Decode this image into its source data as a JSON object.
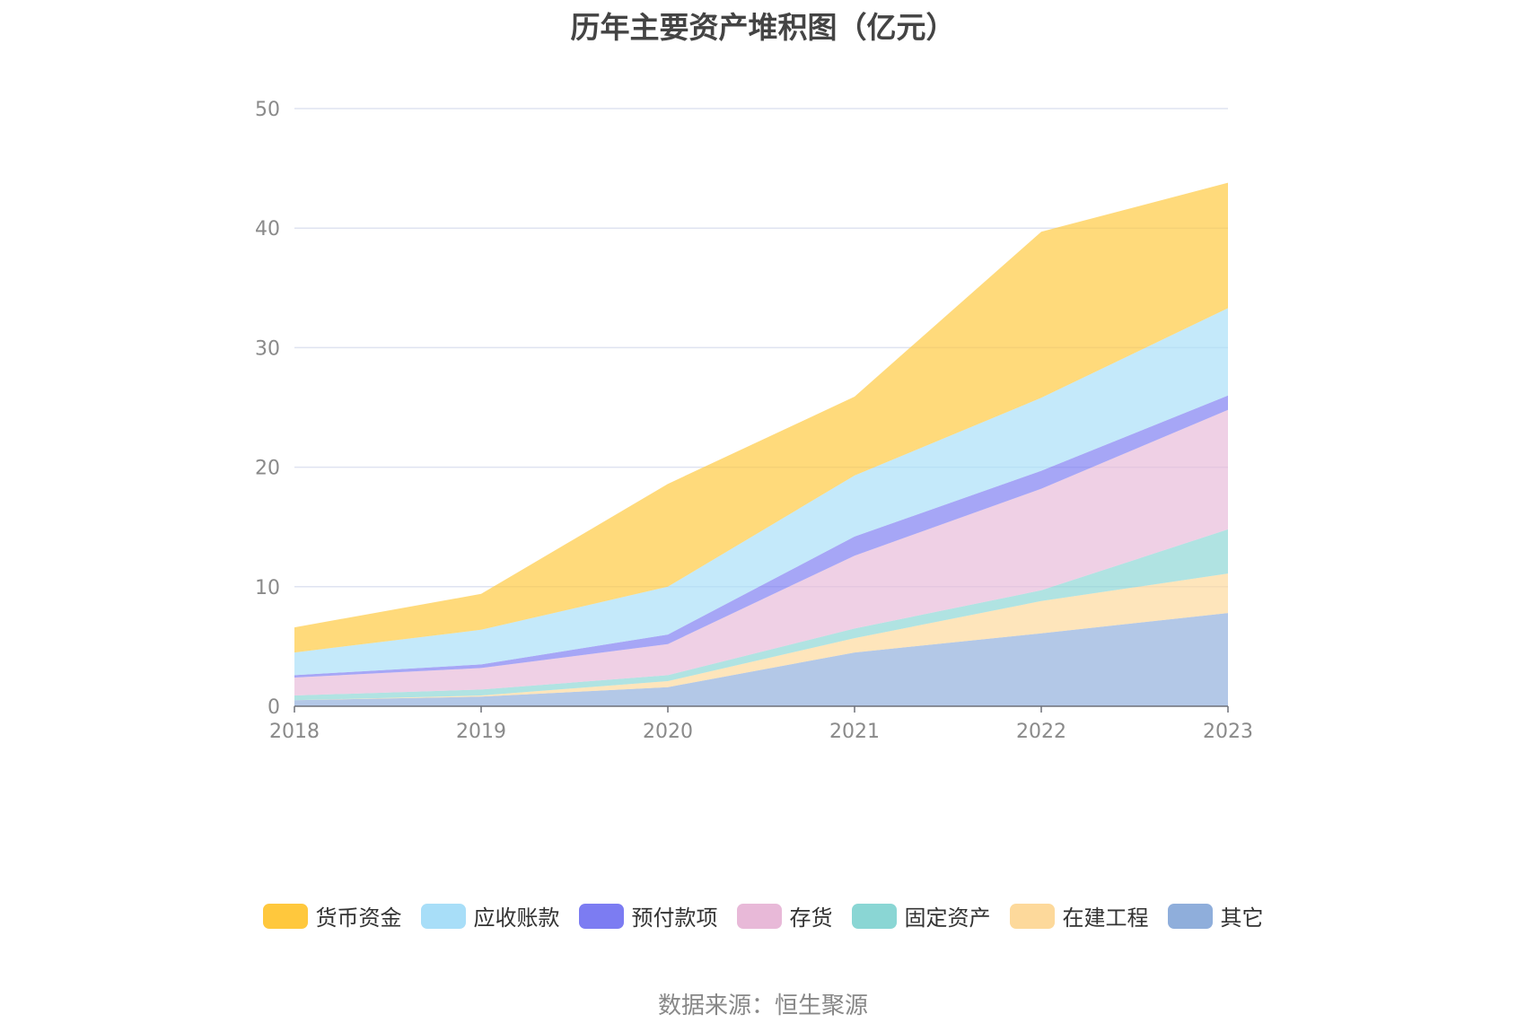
{
  "chart_data": {
    "type": "area",
    "stacked": true,
    "title": "历年主要资产堆积图（亿元）",
    "x": [
      "2018",
      "2019",
      "2020",
      "2021",
      "2022",
      "2023"
    ],
    "ylim": [
      0,
      50
    ],
    "yticks": [
      0,
      10,
      20,
      30,
      40,
      50
    ],
    "grid": true,
    "legend_position": "bottom",
    "series": [
      {
        "name": "其它",
        "color": "#8faedb",
        "values": [
          0.5,
          0.8,
          1.6,
          4.5,
          6.1,
          7.8
        ]
      },
      {
        "name": "在建工程",
        "color": "#fdd99b",
        "values": [
          0.0,
          0.1,
          0.5,
          1.2,
          2.7,
          3.3
        ]
      },
      {
        "name": "固定资产",
        "color": "#8ad6d4",
        "values": [
          0.4,
          0.5,
          0.5,
          0.8,
          0.9,
          3.7
        ]
      },
      {
        "name": "存货",
        "color": "#e8b9d8",
        "values": [
          1.5,
          1.8,
          2.6,
          6.1,
          8.5,
          10.0
        ]
      },
      {
        "name": "预付款项",
        "color": "#7c7cf2",
        "values": [
          0.2,
          0.3,
          0.8,
          1.6,
          1.5,
          1.2
        ]
      },
      {
        "name": "应收账款",
        "color": "#a8def8",
        "values": [
          1.9,
          2.9,
          4.0,
          5.1,
          6.1,
          7.3
        ]
      },
      {
        "name": "货币资金",
        "color": "#ffc83d",
        "values": [
          2.1,
          3.0,
          8.6,
          6.6,
          13.9,
          10.5
        ]
      }
    ],
    "legend_order": [
      "货币资金",
      "应收账款",
      "预付款项",
      "存货",
      "固定资产",
      "在建工程",
      "其它"
    ]
  },
  "footer": {
    "source": "数据来源：恒生聚源"
  }
}
